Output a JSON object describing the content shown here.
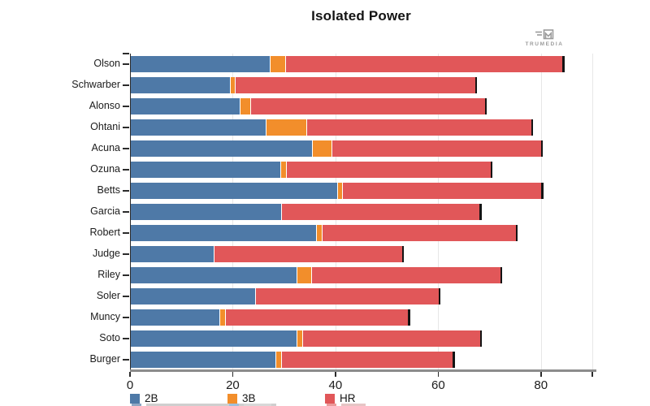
{
  "chart_data": {
    "type": "bar",
    "orientation": "horizontal",
    "stacked": true,
    "title": "Isolated Power",
    "categories": [
      "Olson",
      "Schwarber",
      "Alonso",
      "Ohtani",
      "Acuna",
      "Ozuna",
      "Betts",
      "Garcia",
      "Robert",
      "Judge",
      "Riley",
      "Soler",
      "Muncy",
      "Soto",
      "Burger"
    ],
    "series": [
      {
        "name": "2B",
        "color": "#4e79a7",
        "values": [
          27.0,
          19.3,
          21.2,
          26.3,
          35.2,
          29.1,
          40.1,
          29.3,
          36.1,
          16.2,
          32.2,
          24.2,
          17.2,
          32.2,
          28.2
        ]
      },
      {
        "name": "3B",
        "color": "#f28e2b",
        "values": [
          3.1,
          0.9,
          2.1,
          7.8,
          3.9,
          1.1,
          1.1,
          0,
          1.1,
          0,
          2.9,
          0,
          1.2,
          1.1,
          1.1
        ]
      },
      {
        "name": "HR",
        "color": "#e15759",
        "values": [
          54.3,
          47.2,
          46.0,
          44.2,
          41.1,
          40.2,
          39.1,
          39.0,
          38.1,
          37.0,
          37.2,
          36.1,
          36.0,
          35.1,
          33.8
        ]
      }
    ],
    "totals": [
      84.4,
      67.4,
      69.3,
      78.3,
      80.2,
      70.4,
      80.3,
      68.3,
      75.3,
      53.2,
      72.3,
      60.3,
      54.4,
      68.4,
      63.1
    ],
    "xlabel": "",
    "ylabel": "",
    "xlim": [
      0,
      90
    ],
    "xticks": [
      0,
      20,
      40,
      60,
      80
    ],
    "axis_end_tick": 90,
    "gridlines": [
      20,
      40,
      60,
      80,
      90
    ],
    "grid": true,
    "legend_position": "bottom",
    "bar_end_cap_color": "#141414",
    "axis_line_color": "#8c8c8c",
    "gridline_color": "#e7e7e7"
  },
  "logo": {
    "text": "TRUMEDIA"
  }
}
